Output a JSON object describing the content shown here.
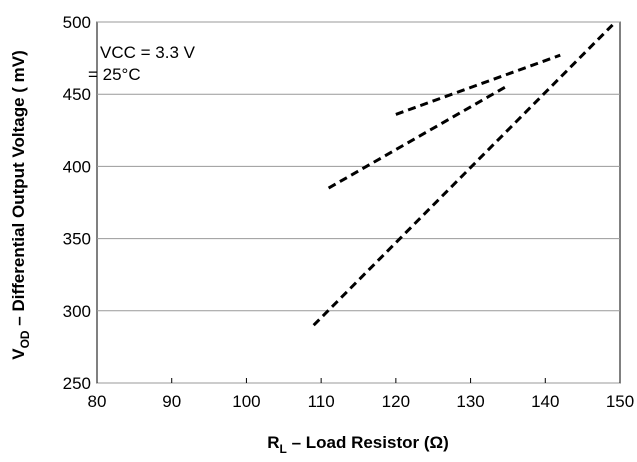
{
  "chart_data": {
    "type": "line",
    "x_label": {
      "main": "R",
      "sub": "L",
      "rest": " – Load Resistor (Ω)"
    },
    "y_label": {
      "main": "V",
      "sub": "OD",
      "rest": " – Differential Output Voltage ( mV)"
    },
    "annotations": [
      "VCC = 3.3 V",
      "= 25°C"
    ],
    "series": [
      {
        "color": "#000000",
        "x": [
          109,
          149
        ],
        "values": [
          290,
          498
        ]
      },
      {
        "color": "#000000",
        "x": [
          111,
          135
        ],
        "values": [
          385,
          456
        ]
      },
      {
        "color": "#000000",
        "x": [
          120,
          142
        ],
        "values": [
          436,
          477
        ]
      }
    ],
    "xlim": [
      80,
      150
    ],
    "xticks": [
      80,
      90,
      100,
      110,
      120,
      130,
      140,
      150
    ],
    "ylim": [
      250,
      500
    ],
    "yticks": [
      250,
      300,
      350,
      400,
      450,
      500
    ],
    "grid": true
  }
}
